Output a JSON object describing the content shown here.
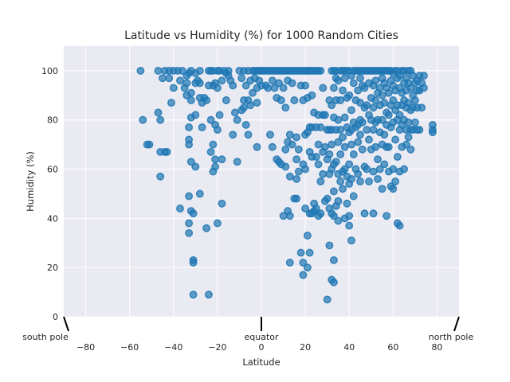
{
  "chart_data": {
    "type": "scatter",
    "title": "Latitude vs Humidity (%) for 1000 Random Cities",
    "xlabel": "Latitude",
    "ylabel": "Humidity (%)",
    "xlim": [
      -90,
      90
    ],
    "ylim": [
      0,
      110
    ],
    "xticks": [
      -80,
      -60,
      -40,
      -20,
      0,
      20,
      40,
      60,
      80
    ],
    "yticks": [
      0,
      20,
      40,
      60,
      80,
      100
    ],
    "grid": true,
    "point_color": "#1f77b4",
    "background_color": "#eaeaf2",
    "annotations": [
      {
        "text": "south pole",
        "x": -90,
        "y": 0
      },
      {
        "text": "equator",
        "x": 0,
        "y": 0
      },
      {
        "text": "north pole",
        "x": 90,
        "y": 0
      }
    ],
    "points": [
      [
        -55,
        100
      ],
      [
        -54,
        80
      ],
      [
        -52,
        70
      ],
      [
        -51,
        70
      ],
      [
        -47,
        100
      ],
      [
        -47,
        83
      ],
      [
        -46,
        80
      ],
      [
        -46,
        67
      ],
      [
        -46,
        57
      ],
      [
        -45,
        97
      ],
      [
        -44,
        100
      ],
      [
        -44,
        67
      ],
      [
        -43,
        67
      ],
      [
        -42,
        97
      ],
      [
        -42,
        100
      ],
      [
        -41,
        87
      ],
      [
        -40,
        93
      ],
      [
        -40,
        100
      ],
      [
        -38,
        100
      ],
      [
        -37,
        96
      ],
      [
        -37,
        44
      ],
      [
        -36,
        100
      ],
      [
        -35,
        93
      ],
      [
        -34,
        98
      ],
      [
        -34,
        95
      ],
      [
        -34,
        90
      ],
      [
        -33,
        99
      ],
      [
        -33,
        77
      ],
      [
        -33,
        72
      ],
      [
        -33,
        70
      ],
      [
        -33,
        49
      ],
      [
        -33,
        38
      ],
      [
        -33,
        34
      ],
      [
        -32,
        100
      ],
      [
        -32,
        91
      ],
      [
        -32,
        88
      ],
      [
        -32,
        81
      ],
      [
        -32,
        63
      ],
      [
        -32,
        43
      ],
      [
        -31,
        42
      ],
      [
        -31,
        23
      ],
      [
        -31,
        22
      ],
      [
        -31,
        9
      ],
      [
        -30,
        99
      ],
      [
        -30,
        95
      ],
      [
        -30,
        82
      ],
      [
        -30,
        61
      ],
      [
        -29,
        96
      ],
      [
        -28,
        100
      ],
      [
        -28,
        95
      ],
      [
        -28,
        89
      ],
      [
        -28,
        50
      ],
      [
        -27,
        87
      ],
      [
        -27,
        77
      ],
      [
        -26,
        89
      ],
      [
        -25,
        88
      ],
      [
        -25,
        36
      ],
      [
        -24,
        94
      ],
      [
        -24,
        100
      ],
      [
        -24,
        9
      ],
      [
        -23,
        100
      ],
      [
        -23,
        80
      ],
      [
        -23,
        67
      ],
      [
        -22,
        100
      ],
      [
        -22,
        94
      ],
      [
        -22,
        70
      ],
      [
        -22,
        59
      ],
      [
        -21,
        95
      ],
      [
        -21,
        78
      ],
      [
        -21,
        64
      ],
      [
        -21,
        61
      ],
      [
        -20,
        100
      ],
      [
        -20,
        93
      ],
      [
        -20,
        76
      ],
      [
        -20,
        38
      ],
      [
        -19,
        100
      ],
      [
        -19,
        82
      ],
      [
        -18,
        96
      ],
      [
        -18,
        64
      ],
      [
        -18,
        46
      ],
      [
        -17,
        100
      ],
      [
        -16,
        99
      ],
      [
        -16,
        88
      ],
      [
        -15,
        100
      ],
      [
        -15,
        98
      ],
      [
        -14,
        96
      ],
      [
        -13,
        94
      ],
      [
        -13,
        74
      ],
      [
        -12,
        83
      ],
      [
        -11,
        80
      ],
      [
        -11,
        63
      ],
      [
        -10,
        100
      ],
      [
        -9,
        97
      ],
      [
        -9,
        84
      ],
      [
        -8,
        100
      ],
      [
        -8,
        88
      ],
      [
        -8,
        85
      ],
      [
        -7,
        94
      ],
      [
        -7,
        78
      ],
      [
        -6,
        100
      ],
      [
        -6,
        88
      ],
      [
        -6,
        74
      ],
      [
        -5,
        96
      ],
      [
        -5,
        86
      ],
      [
        -4,
        100
      ],
      [
        -4,
        91
      ],
      [
        -3,
        100
      ],
      [
        -3,
        97
      ],
      [
        -2,
        100
      ],
      [
        -2,
        93
      ],
      [
        -2,
        87
      ],
      [
        -2,
        69
      ],
      [
        -1,
        100
      ],
      [
        -1,
        96
      ],
      [
        0,
        100
      ],
      [
        0,
        94
      ],
      [
        1,
        100
      ],
      [
        2,
        100
      ],
      [
        2,
        94
      ],
      [
        3,
        100
      ],
      [
        3,
        93
      ],
      [
        4,
        100
      ],
      [
        4,
        74
      ],
      [
        5,
        100
      ],
      [
        5,
        96
      ],
      [
        5,
        69
      ],
      [
        6,
        100
      ],
      [
        6,
        93
      ],
      [
        7,
        100
      ],
      [
        7,
        89
      ],
      [
        7,
        64
      ],
      [
        8,
        100
      ],
      [
        8,
        95
      ],
      [
        8,
        63
      ],
      [
        9,
        100
      ],
      [
        9,
        88
      ],
      [
        9,
        62
      ],
      [
        10,
        100
      ],
      [
        10,
        93
      ],
      [
        10,
        41
      ],
      [
        11,
        100
      ],
      [
        11,
        85
      ],
      [
        11,
        68
      ],
      [
        11,
        61
      ],
      [
        12,
        100
      ],
      [
        12,
        96
      ],
      [
        12,
        71
      ],
      [
        12,
        43
      ],
      [
        13,
        100
      ],
      [
        13,
        74
      ],
      [
        13,
        57
      ],
      [
        13,
        41
      ],
      [
        13,
        22
      ],
      [
        14,
        100
      ],
      [
        14,
        95
      ],
      [
        14,
        70
      ],
      [
        15,
        100
      ],
      [
        15,
        88
      ],
      [
        15,
        48
      ],
      [
        16,
        100
      ],
      [
        16,
        73
      ],
      [
        16,
        64
      ],
      [
        16,
        56
      ],
      [
        16,
        48
      ],
      [
        17,
        100
      ],
      [
        17,
        68
      ],
      [
        17,
        59
      ],
      [
        18,
        100
      ],
      [
        18,
        94
      ],
      [
        18,
        26
      ],
      [
        19,
        100
      ],
      [
        19,
        88
      ],
      [
        19,
        62
      ],
      [
        19,
        22
      ],
      [
        19,
        17
      ],
      [
        20,
        100
      ],
      [
        20,
        94
      ],
      [
        20,
        74
      ],
      [
        20,
        60
      ],
      [
        20,
        44
      ],
      [
        21,
        100
      ],
      [
        21,
        89
      ],
      [
        21,
        75
      ],
      [
        21,
        33
      ],
      [
        21,
        20
      ],
      [
        22,
        100
      ],
      [
        22,
        77
      ],
      [
        22,
        67
      ],
      [
        22,
        42
      ],
      [
        22,
        26
      ],
      [
        23,
        100
      ],
      [
        23,
        90
      ],
      [
        23,
        77
      ],
      [
        23,
        65
      ],
      [
        23,
        42
      ],
      [
        24,
        100
      ],
      [
        24,
        83
      ],
      [
        24,
        46
      ],
      [
        24,
        43
      ],
      [
        25,
        100
      ],
      [
        25,
        77
      ],
      [
        25,
        65
      ],
      [
        25,
        44
      ],
      [
        26,
        100
      ],
      [
        26,
        82
      ],
      [
        26,
        70
      ],
      [
        26,
        62
      ],
      [
        26,
        41
      ],
      [
        27,
        100
      ],
      [
        27,
        77
      ],
      [
        27,
        55
      ],
      [
        27,
        42
      ],
      [
        28,
        93
      ],
      [
        28,
        82
      ],
      [
        28,
        67
      ],
      [
        28,
        58
      ],
      [
        29,
        82
      ],
      [
        29,
        69
      ],
      [
        29,
        47
      ],
      [
        30,
        76
      ],
      [
        30,
        64
      ],
      [
        30,
        48
      ],
      [
        30,
        7
      ],
      [
        31,
        88
      ],
      [
        31,
        76
      ],
      [
        31,
        66
      ],
      [
        31,
        58
      ],
      [
        31,
        44
      ],
      [
        31,
        29
      ],
      [
        32,
        100
      ],
      [
        32,
        86
      ],
      [
        32,
        76
      ],
      [
        32,
        70
      ],
      [
        32,
        60
      ],
      [
        32,
        42
      ],
      [
        32,
        15
      ],
      [
        33,
        100
      ],
      [
        33,
        93
      ],
      [
        33,
        81
      ],
      [
        33,
        62
      ],
      [
        33,
        51
      ],
      [
        33,
        41
      ],
      [
        33,
        23
      ],
      [
        33,
        14
      ],
      [
        34,
        100
      ],
      [
        34,
        97
      ],
      [
        34,
        88
      ],
      [
        34,
        76
      ],
      [
        34,
        63
      ],
      [
        34,
        45
      ],
      [
        35,
        96
      ],
      [
        35,
        80
      ],
      [
        35,
        71
      ],
      [
        35,
        58
      ],
      [
        35,
        47
      ],
      [
        35,
        39
      ],
      [
        36,
        100
      ],
      [
        36,
        88
      ],
      [
        36,
        76
      ],
      [
        36,
        66
      ],
      [
        36,
        55
      ],
      [
        37,
        100
      ],
      [
        37,
        92
      ],
      [
        37,
        73
      ],
      [
        37,
        59
      ],
      [
        37,
        52
      ],
      [
        38,
        100
      ],
      [
        38,
        97
      ],
      [
        38,
        81
      ],
      [
        38,
        69
      ],
      [
        38,
        60
      ],
      [
        38,
        40
      ],
      [
        39,
        100
      ],
      [
        39,
        89
      ],
      [
        39,
        77
      ],
      [
        39,
        57
      ],
      [
        39,
        46
      ],
      [
        40,
        100
      ],
      [
        40,
        90
      ],
      [
        40,
        75
      ],
      [
        40,
        62
      ],
      [
        40,
        54
      ],
      [
        40,
        41
      ],
      [
        40,
        37
      ],
      [
        41,
        98
      ],
      [
        41,
        84
      ],
      [
        41,
        76
      ],
      [
        41,
        70
      ],
      [
        41,
        56
      ],
      [
        41,
        31
      ],
      [
        42,
        100
      ],
      [
        42,
        95
      ],
      [
        42,
        79
      ],
      [
        42,
        66
      ],
      [
        42,
        49
      ],
      [
        43,
        100
      ],
      [
        43,
        88
      ],
      [
        43,
        77
      ],
      [
        43,
        60
      ],
      [
        44,
        100
      ],
      [
        44,
        92
      ],
      [
        44,
        78
      ],
      [
        44,
        71
      ],
      [
        44,
        58
      ],
      [
        45,
        100
      ],
      [
        45,
        97
      ],
      [
        45,
        87
      ],
      [
        45,
        80
      ],
      [
        45,
        74
      ],
      [
        45,
        55
      ],
      [
        46,
        100
      ],
      [
        46,
        94
      ],
      [
        46,
        79
      ],
      [
        46,
        68
      ],
      [
        47,
        100
      ],
      [
        47,
        93
      ],
      [
        47,
        85
      ],
      [
        47,
        61
      ],
      [
        47,
        42
      ],
      [
        48,
        100
      ],
      [
        48,
        86
      ],
      [
        48,
        76
      ],
      [
        48,
        60
      ],
      [
        49,
        100
      ],
      [
        49,
        95
      ],
      [
        49,
        82
      ],
      [
        49,
        72
      ],
      [
        49,
        55
      ],
      [
        50,
        100
      ],
      [
        50,
        89
      ],
      [
        50,
        80
      ],
      [
        50,
        68
      ],
      [
        51,
        100
      ],
      [
        51,
        94
      ],
      [
        51,
        85
      ],
      [
        51,
        76
      ],
      [
        51,
        59
      ],
      [
        51,
        42
      ],
      [
        52,
        100
      ],
      [
        52,
        96
      ],
      [
        52,
        88
      ],
      [
        52,
        79
      ],
      [
        52,
        69
      ],
      [
        53,
        100
      ],
      [
        53,
        91
      ],
      [
        53,
        80
      ],
      [
        53,
        64
      ],
      [
        53,
        56
      ],
      [
        54,
        100
      ],
      [
        54,
        93
      ],
      [
        54,
        86
      ],
      [
        54,
        75
      ],
      [
        54,
        60
      ],
      [
        55,
        100
      ],
      [
        55,
        97
      ],
      [
        55,
        90
      ],
      [
        55,
        80
      ],
      [
        55,
        70
      ],
      [
        55,
        52
      ],
      [
        56,
        100
      ],
      [
        56,
        95
      ],
      [
        56,
        87
      ],
      [
        56,
        74
      ],
      [
        56,
        62
      ],
      [
        57,
        100
      ],
      [
        57,
        93
      ],
      [
        57,
        83
      ],
      [
        57,
        78
      ],
      [
        57,
        69
      ],
      [
        57,
        41
      ],
      [
        58,
        100
      ],
      [
        58,
        91
      ],
      [
        58,
        82
      ],
      [
        58,
        69
      ],
      [
        58,
        59
      ],
      [
        59,
        100
      ],
      [
        59,
        96
      ],
      [
        59,
        86
      ],
      [
        59,
        77
      ],
      [
        59,
        53
      ],
      [
        60,
        99
      ],
      [
        60,
        94
      ],
      [
        60,
        88
      ],
      [
        60,
        79
      ],
      [
        60,
        60
      ],
      [
        60,
        52
      ],
      [
        61,
        100
      ],
      [
        61,
        92
      ],
      [
        61,
        84
      ],
      [
        61,
        72
      ],
      [
        61,
        55
      ],
      [
        62,
        100
      ],
      [
        62,
        97
      ],
      [
        62,
        86
      ],
      [
        62,
        80
      ],
      [
        62,
        65
      ],
      [
        62,
        38
      ],
      [
        63,
        98
      ],
      [
        63,
        93
      ],
      [
        63,
        82
      ],
      [
        63,
        76
      ],
      [
        63,
        59
      ],
      [
        63,
        37
      ],
      [
        64,
        100
      ],
      [
        64,
        91
      ],
      [
        64,
        86
      ],
      [
        64,
        78
      ],
      [
        64,
        69
      ],
      [
        65,
        100
      ],
      [
        65,
        95
      ],
      [
        65,
        88
      ],
      [
        65,
        80
      ],
      [
        65,
        60
      ],
      [
        66,
        97
      ],
      [
        66,
        92
      ],
      [
        66,
        85
      ],
      [
        66,
        76
      ],
      [
        66,
        70
      ],
      [
        67,
        100
      ],
      [
        67,
        95
      ],
      [
        67,
        87
      ],
      [
        67,
        79
      ],
      [
        67,
        73
      ],
      [
        68,
        100
      ],
      [
        68,
        93
      ],
      [
        68,
        84
      ],
      [
        68,
        76
      ],
      [
        68,
        68
      ],
      [
        69,
        98
      ],
      [
        69,
        90
      ],
      [
        69,
        85
      ],
      [
        69,
        76
      ],
      [
        70,
        95
      ],
      [
        70,
        88
      ],
      [
        70,
        79
      ],
      [
        71,
        96
      ],
      [
        71,
        92
      ],
      [
        71,
        85
      ],
      [
        71,
        76
      ],
      [
        72,
        98
      ],
      [
        72,
        92
      ],
      [
        72,
        76
      ],
      [
        73,
        95
      ],
      [
        73,
        85
      ],
      [
        74,
        98
      ],
      [
        74,
        93
      ],
      [
        78,
        78
      ],
      [
        78,
        75
      ],
      [
        78,
        76
      ]
    ]
  }
}
